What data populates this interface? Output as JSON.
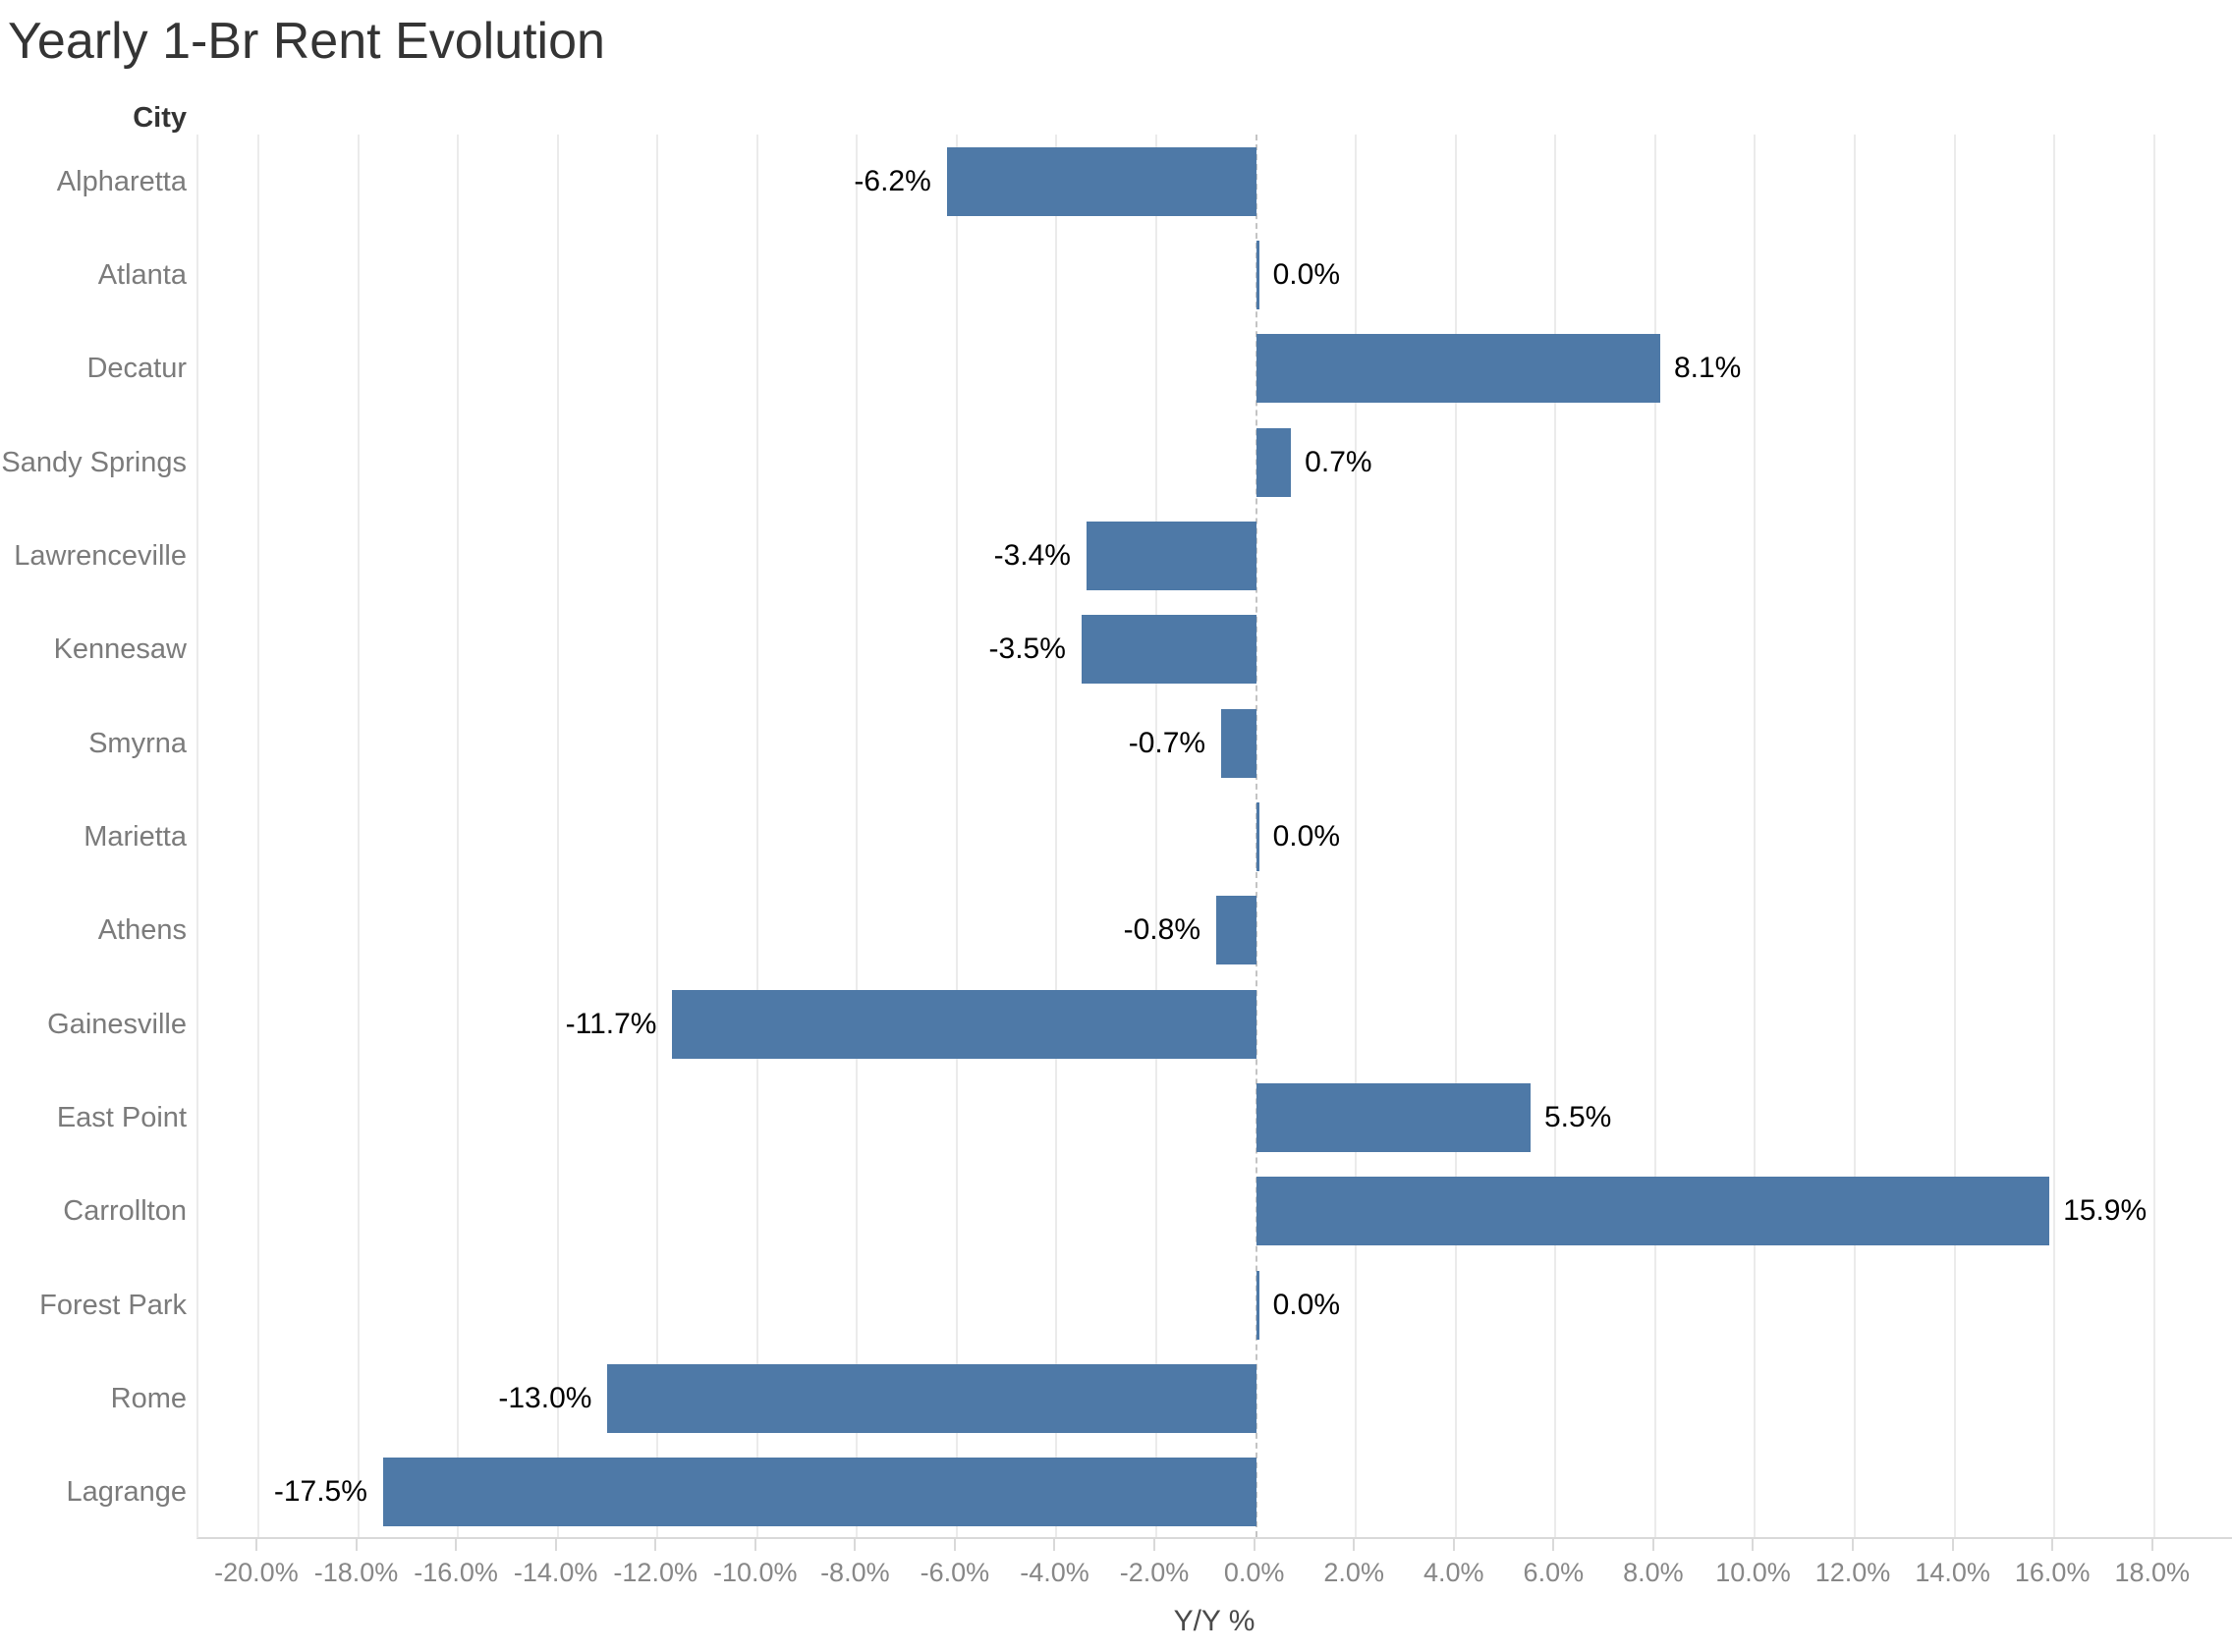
{
  "title": "Yearly 1-Br Rent Evolution",
  "row_header": "City",
  "x_axis_label": "Y/Y %",
  "colors": {
    "bar": "#4e79a7",
    "grid": "#ebebeb",
    "zero_line": "#c4c4c4",
    "axis_line": "#d9d9d9",
    "title_text": "#343434",
    "category_text": "#7b7b7b",
    "tick_text": "#878787",
    "value_text": "#000000"
  },
  "chart_data": {
    "type": "bar",
    "orientation": "horizontal",
    "title": "Yearly 1-Br Rent Evolution",
    "ylabel": "City",
    "xlabel": "Y/Y %",
    "categories": [
      "Alpharetta",
      "Atlanta",
      "Decatur",
      "Sandy Springs",
      "Lawrenceville",
      "Kennesaw",
      "Smyrna",
      "Marietta",
      "Athens",
      "Gainesville",
      "East Point",
      "Carrollton",
      "Forest Park",
      "Rome",
      "Lagrange"
    ],
    "values": [
      -6.2,
      0.0,
      8.1,
      0.7,
      -3.4,
      -3.5,
      -0.7,
      0.0,
      -0.8,
      -11.7,
      5.5,
      15.9,
      0.0,
      -13.0,
      -17.5
    ],
    "value_labels": [
      "-6.2%",
      "0.0%",
      "8.1%",
      "0.7%",
      "-3.4%",
      "-3.5%",
      "-0.7%",
      "0.0%",
      "-0.8%",
      "-11.7%",
      "5.5%",
      "15.9%",
      "0.0%",
      "-13.0%",
      "-17.5%"
    ],
    "xticks": [
      -20,
      -18,
      -16,
      -14,
      -12,
      -10,
      -8,
      -6,
      -4,
      -2,
      0,
      2,
      4,
      6,
      8,
      10,
      12,
      14,
      16,
      18
    ],
    "xtick_labels": [
      "-20.0%",
      "-18.0%",
      "-16.0%",
      "-14.0%",
      "-12.0%",
      "-10.0%",
      "-8.0%",
      "-6.0%",
      "-4.0%",
      "-2.0%",
      "0.0%",
      "2.0%",
      "4.0%",
      "6.0%",
      "8.0%",
      "10.0%",
      "12.0%",
      "14.0%",
      "16.0%",
      "18.0%"
    ],
    "xlim": [
      -21.2,
      19.6
    ],
    "grid": "vertical",
    "zero_line": "dashed",
    "legend": "none"
  }
}
